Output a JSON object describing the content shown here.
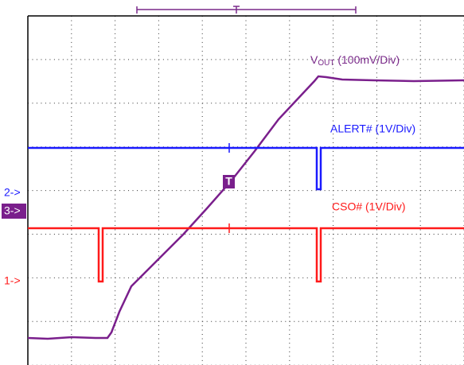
{
  "traces": [
    {
      "label_main": "V",
      "label_sub": "OUT",
      "label_rest": " (100mV/Div)"
    },
    {
      "label": "ALERT# (1V/Div)"
    },
    {
      "label": "CSO# (1V/Div)"
    }
  ],
  "markers": {
    "ch1": "1->",
    "ch2": "2->",
    "ch3": "3->",
    "trigger": "T"
  }
}
